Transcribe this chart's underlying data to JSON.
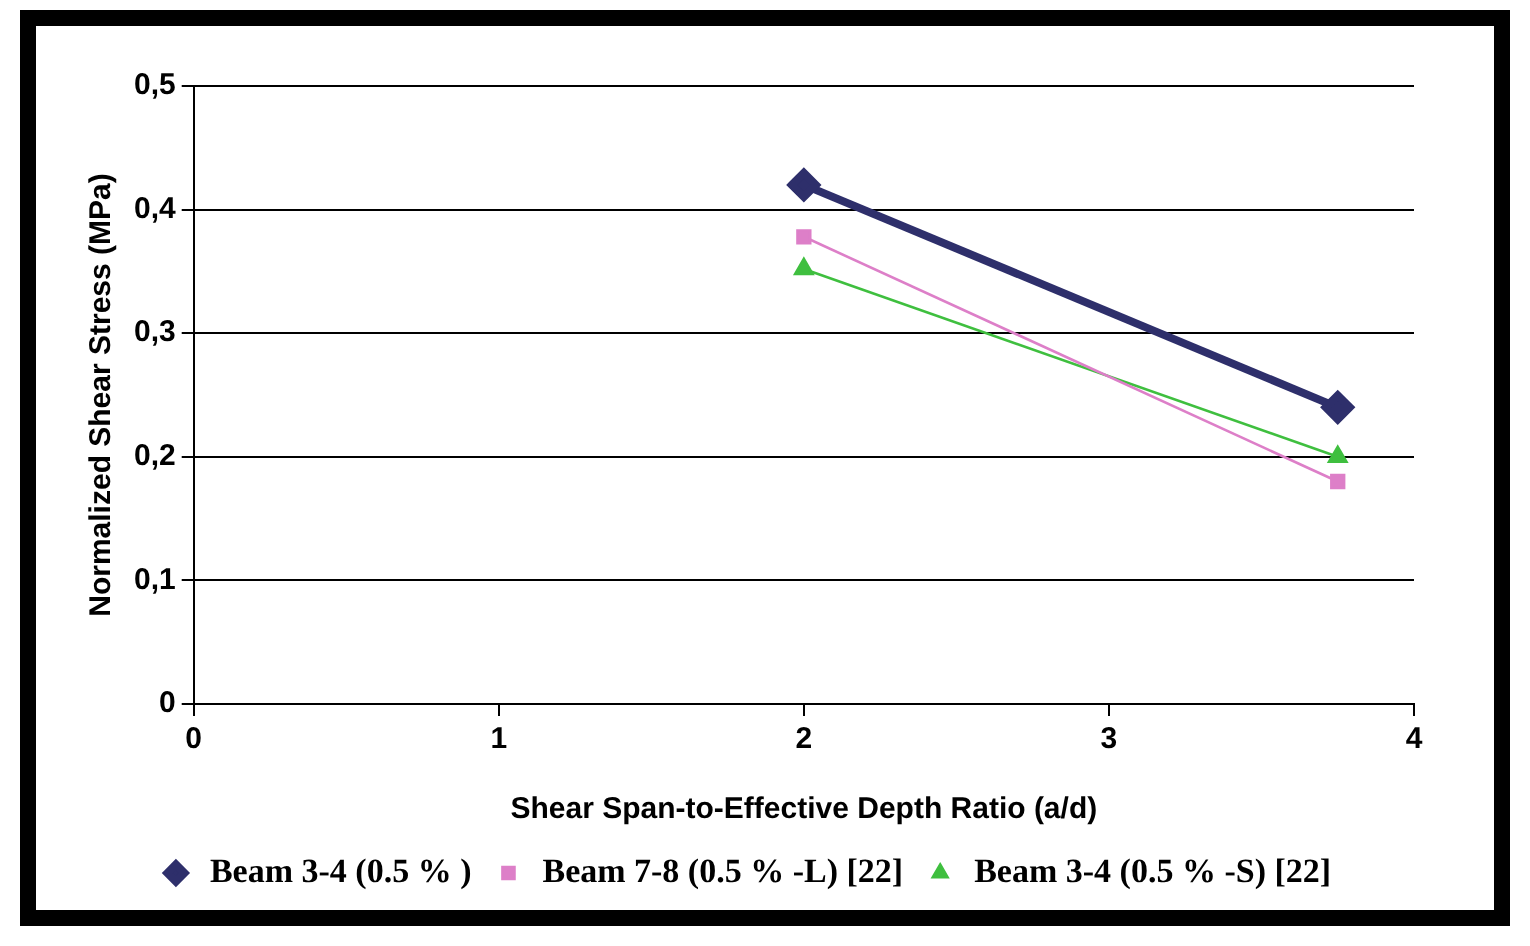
{
  "chart_data": {
    "type": "line",
    "xlabel": "Shear Span-to-Effective Depth Ratio (a/d)",
    "ylabel": "Normalized Shear Stress (MPa)",
    "x": [
      2,
      3.75
    ],
    "series": [
      {
        "name": "Beam 3-4 (0.5 % )",
        "color": "#2e2f6b",
        "values": [
          0.42,
          0.24
        ],
        "marker": "diamond"
      },
      {
        "name": "Beam 7-8 (0.5 % -L) [22]",
        "color": "#dd7fc8",
        "values": [
          0.378,
          0.18
        ],
        "marker": "square"
      },
      {
        "name": "Beam 3-4 (0.5 % -S) [22]",
        "color": "#3fbf3f",
        "values": [
          0.352,
          0.2
        ],
        "marker": "triangle"
      }
    ],
    "xlim": [
      0,
      4
    ],
    "xticks": [
      0,
      1,
      2,
      3,
      4
    ],
    "ylim": [
      0,
      0.5
    ],
    "yticks": [
      {
        "value": 0,
        "label": "0"
      },
      {
        "value": 0.1,
        "label": "0,1"
      },
      {
        "value": 0.2,
        "label": "0,2"
      },
      {
        "value": 0.3,
        "label": "0,3"
      },
      {
        "value": 0.4,
        "label": "0,4"
      },
      {
        "value": 0.5,
        "label": "0,5"
      }
    ],
    "grid": "y",
    "legend": "bottom",
    "line_style": "solid"
  }
}
